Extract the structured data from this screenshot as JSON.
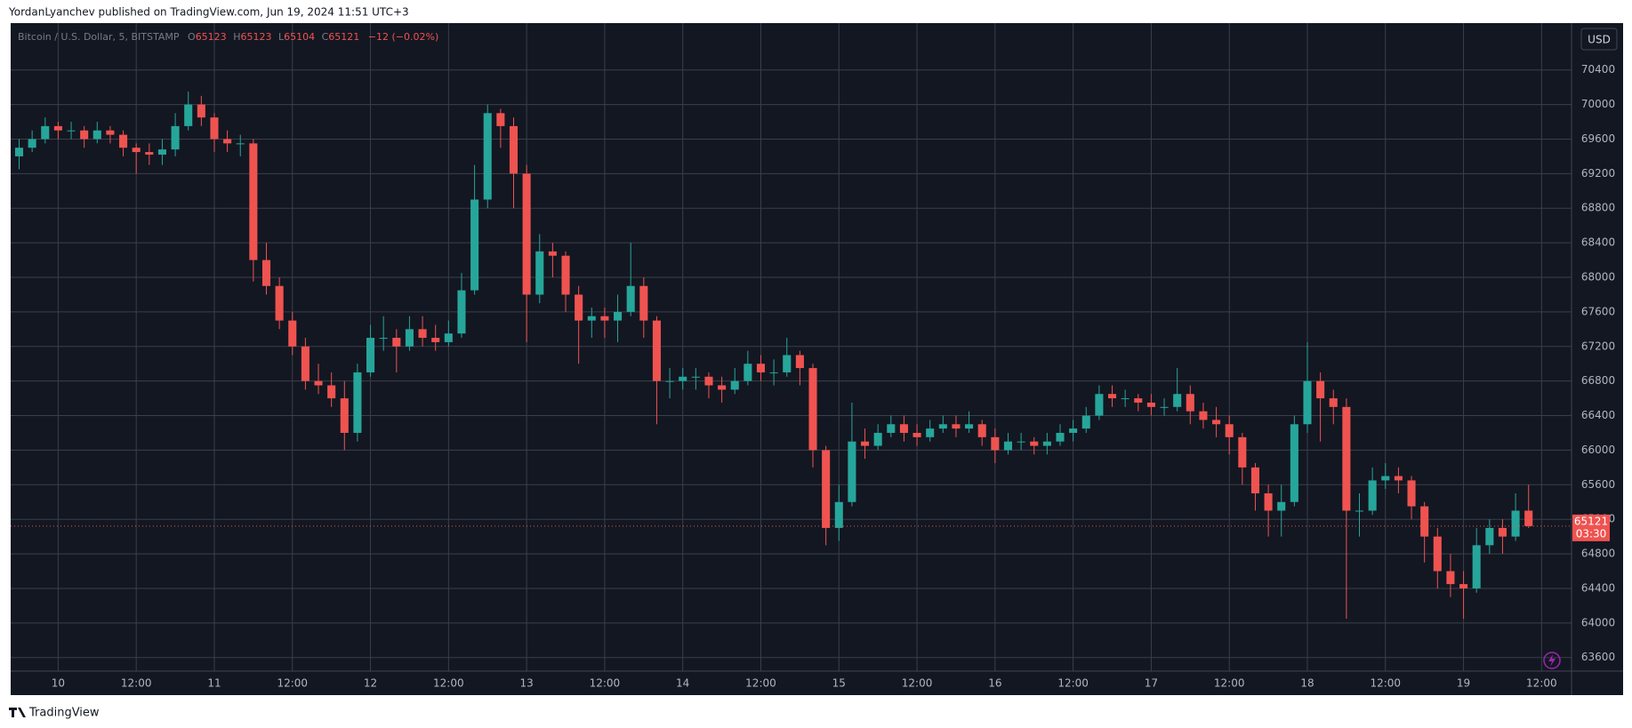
{
  "header": {
    "title": "YordanLyanchev published on TradingView.com, Jun 19, 2024 11:51 UTC+3"
  },
  "footer": {
    "brand": "TradingView"
  },
  "chart_data": {
    "type": "candlestick",
    "legend": {
      "symbol": "Bitcoin / U.S. Dollar, 5, BITSTAMP",
      "fields": [
        {
          "label": "O",
          "value": "65123"
        },
        {
          "label": "H",
          "value": "65123"
        },
        {
          "label": "L",
          "value": "65104"
        },
        {
          "label": "C",
          "value": "65121"
        }
      ],
      "change": "−12 (−0.02%)"
    },
    "currency": "USD",
    "last_price": 65121,
    "countdown": "03:30",
    "up_color": "#26a69a",
    "down_color": "#ef5350",
    "grid": true,
    "xlim": [
      -7.3,
      232.6
    ],
    "ylim": [
      63443,
      70942
    ],
    "xticks": [
      {
        "value": 0,
        "label": "10"
      },
      {
        "value": 12,
        "label": "12:00"
      },
      {
        "value": 24,
        "label": "11"
      },
      {
        "value": 36,
        "label": "12:00"
      },
      {
        "value": 48,
        "label": "12"
      },
      {
        "value": 60,
        "label": "12:00"
      },
      {
        "value": 72,
        "label": "13"
      },
      {
        "value": 84,
        "label": "12:00"
      },
      {
        "value": 96,
        "label": "14"
      },
      {
        "value": 108,
        "label": "12:00"
      },
      {
        "value": 120,
        "label": "15"
      },
      {
        "value": 132,
        "label": "12:00"
      },
      {
        "value": 144,
        "label": "16"
      },
      {
        "value": 156,
        "label": "12:00"
      },
      {
        "value": 168,
        "label": "17"
      },
      {
        "value": 180,
        "label": "12:00"
      },
      {
        "value": 192,
        "label": "18"
      },
      {
        "value": 204,
        "label": "12:00"
      },
      {
        "value": 216,
        "label": "19"
      },
      {
        "value": 228,
        "label": "12:00"
      }
    ],
    "yticks": [
      63600,
      64000,
      64400,
      64800,
      65200,
      65600,
      66000,
      66400,
      66800,
      67200,
      67600,
      68000,
      68400,
      68800,
      69200,
      69600,
      70000,
      70400
    ],
    "x": [
      -6,
      -4,
      -2,
      0,
      2,
      4,
      6,
      8,
      10,
      12,
      14,
      16,
      18,
      20,
      22,
      24,
      26,
      28,
      30,
      32,
      34,
      36,
      38,
      40,
      42,
      44,
      46,
      48,
      50,
      52,
      54,
      56,
      58,
      60,
      62,
      64,
      66,
      68,
      70,
      72,
      74,
      76,
      78,
      80,
      82,
      84,
      86,
      88,
      90,
      92,
      94,
      96,
      98,
      100,
      102,
      104,
      106,
      108,
      110,
      112,
      114,
      116,
      118,
      120,
      122,
      124,
      126,
      128,
      130,
      132,
      134,
      136,
      138,
      140,
      142,
      144,
      146,
      148,
      150,
      152,
      154,
      156,
      158,
      160,
      162,
      164,
      166,
      168,
      170,
      172,
      174,
      176,
      178,
      180,
      182,
      184,
      186,
      188,
      190,
      192,
      194,
      196,
      198,
      200,
      202,
      204,
      206,
      208,
      210,
      212,
      214,
      216,
      218,
      220,
      222,
      224,
      226
    ],
    "open": [
      69400,
      69500,
      69600,
      69750,
      69700,
      69700,
      69600,
      69700,
      69650,
      69500,
      69450,
      69420,
      69480,
      69750,
      70000,
      69850,
      69600,
      69550,
      69550,
      68200,
      67900,
      67500,
      67200,
      66800,
      66750,
      66600,
      66200,
      66900,
      67300,
      67300,
      67200,
      67400,
      67300,
      67250,
      67350,
      67850,
      68900,
      69900,
      69750,
      69200,
      67800,
      68300,
      68250,
      67800,
      67500,
      67550,
      67500,
      67600,
      67900,
      67500,
      66800,
      66800,
      66850,
      66850,
      66750,
      66700,
      66800,
      67000,
      66900,
      66900,
      67100,
      66950,
      66000,
      65100,
      65400,
      66100,
      66050,
      66200,
      66300,
      66200,
      66150,
      66250,
      66300,
      66250,
      66300,
      66150,
      66000,
      66100,
      66100,
      66050,
      66100,
      66200,
      66250,
      66400,
      66650,
      66600,
      66600,
      66550,
      66500,
      66500,
      66650,
      66450,
      66350,
      66300,
      66150,
      65800,
      65500,
      65300,
      65400,
      66300,
      66800,
      66600,
      66500,
      65300,
      65300,
      65650,
      65700,
      65650,
      65350,
      65000,
      64600,
      64450,
      64400,
      64900,
      65100,
      65000,
      65300
    ],
    "high": [
      69600,
      69700,
      69850,
      69800,
      69800,
      69750,
      69800,
      69750,
      69700,
      69550,
      69550,
      69600,
      69900,
      70150,
      70100,
      69900,
      69700,
      69650,
      69600,
      68400,
      68000,
      67600,
      67300,
      67000,
      66900,
      66800,
      67000,
      67450,
      67550,
      67400,
      67550,
      67550,
      67450,
      67500,
      68050,
      69300,
      70000,
      69950,
      69850,
      69300,
      68500,
      68400,
      68300,
      67900,
      67650,
      67650,
      67800,
      68400,
      68000,
      67550,
      66950,
      66950,
      66950,
      66900,
      66850,
      66950,
      67150,
      67100,
      67050,
      67300,
      67150,
      67000,
      66050,
      65600,
      66550,
      66250,
      66300,
      66400,
      66400,
      66300,
      66350,
      66400,
      66400,
      66450,
      66350,
      66250,
      66200,
      66200,
      66150,
      66200,
      66300,
      66350,
      66500,
      66750,
      66750,
      66700,
      66650,
      66650,
      66600,
      66950,
      66750,
      66550,
      66500,
      66400,
      66200,
      65850,
      65600,
      65600,
      66400,
      67250,
      66900,
      66700,
      66600,
      65500,
      65800,
      65850,
      65800,
      65700,
      65400,
      65100,
      64800,
      64600,
      65100,
      65200,
      65200,
      65500,
      65600
    ],
    "low": [
      69250,
      69450,
      69550,
      69600,
      69600,
      69500,
      69550,
      69550,
      69400,
      69200,
      69300,
      69300,
      69400,
      69700,
      69750,
      69450,
      69450,
      69400,
      67950,
      67800,
      67400,
      67100,
      66700,
      66650,
      66500,
      66000,
      66100,
      66850,
      67150,
      66900,
      67150,
      67200,
      67150,
      67200,
      67300,
      67800,
      68800,
      69500,
      68800,
      67250,
      67700,
      68000,
      67600,
      67000,
      67300,
      67300,
      67250,
      67550,
      67300,
      66300,
      66600,
      66700,
      66700,
      66600,
      66550,
      66650,
      66750,
      66800,
      66750,
      66850,
      66750,
      65800,
      64900,
      64950,
      65350,
      65900,
      66000,
      66150,
      66100,
      66050,
      66100,
      66200,
      66150,
      66200,
      66050,
      65850,
      65950,
      66000,
      65950,
      65950,
      66050,
      66100,
      66200,
      66350,
      66500,
      66500,
      66450,
      66400,
      66400,
      66450,
      66300,
      66250,
      66150,
      65950,
      65600,
      65300,
      65000,
      65000,
      65350,
      66200,
      66100,
      66300,
      64050,
      65000,
      65250,
      65550,
      65500,
      65200,
      64700,
      64400,
      64300,
      64050,
      64350,
      64800,
      64800,
      64950,
      65100
    ],
    "close": [
      69500,
      69600,
      69750,
      69700,
      69700,
      69600,
      69700,
      69650,
      69500,
      69450,
      69420,
      69480,
      69750,
      70000,
      69850,
      69600,
      69550,
      69550,
      68200,
      67900,
      67500,
      67200,
      66800,
      66750,
      66600,
      66200,
      66900,
      67300,
      67300,
      67200,
      67400,
      67300,
      67250,
      67350,
      67850,
      68900,
      69900,
      69750,
      69200,
      67800,
      68300,
      68250,
      67800,
      67500,
      67550,
      67500,
      67600,
      67900,
      67500,
      66800,
      66800,
      66850,
      66850,
      66750,
      66700,
      66800,
      67000,
      66900,
      66900,
      67100,
      66950,
      66000,
      65100,
      65400,
      66100,
      66050,
      66200,
      66300,
      66200,
      66150,
      66250,
      66300,
      66250,
      66300,
      66150,
      66000,
      66100,
      66100,
      66050,
      66100,
      66200,
      66250,
      66400,
      66650,
      66600,
      66600,
      66550,
      66500,
      66500,
      66650,
      66450,
      66350,
      66300,
      66150,
      65800,
      65500,
      65300,
      65400,
      66300,
      66800,
      66600,
      66500,
      65300,
      65300,
      65650,
      65700,
      65650,
      65350,
      65000,
      64600,
      64450,
      64400,
      64900,
      65100,
      65000,
      65300,
      65121
    ]
  }
}
